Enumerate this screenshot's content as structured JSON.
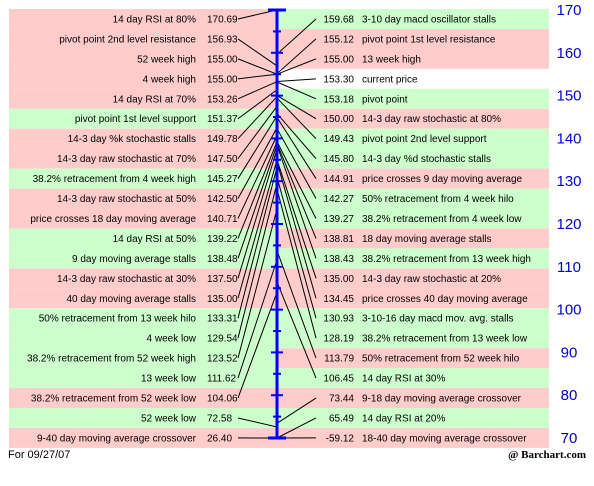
{
  "chart_data": {
    "type": "table",
    "title": "",
    "axis": {
      "ticks": [
        170,
        160,
        150,
        140,
        130,
        120,
        110,
        100,
        90,
        80,
        70
      ],
      "range": [
        70,
        170
      ]
    },
    "colors": {
      "green": "#ccffcc",
      "red": "#ffcccc",
      "current": "#ffffff",
      "axis": "#0000ff",
      "tick_labels": "#0000cc"
    },
    "left": [
      {
        "label": "14 day RSI at 80%",
        "value": "170.69",
        "color": "red"
      },
      {
        "label": "pivot point 2nd level resistance",
        "value": "156.93",
        "color": "red"
      },
      {
        "label": "52 week high",
        "value": "155.00",
        "color": "red"
      },
      {
        "label": "4 week high",
        "value": "155.00",
        "color": "red"
      },
      {
        "label": "14 day RSI at 70%",
        "value": "153.26",
        "color": "red"
      },
      {
        "label": "pivot point 1st level support",
        "value": "151.37",
        "color": "green"
      },
      {
        "label": "14-3 day %k stochastic stalls",
        "value": "149.78",
        "color": "red"
      },
      {
        "label": "14-3 day raw stochastic at 70%",
        "value": "147.50",
        "color": "red"
      },
      {
        "label": "38.2% retracement from 4 week high",
        "value": "145.27",
        "color": "green"
      },
      {
        "label": "14-3 day raw stochastic at 50%",
        "value": "142.50",
        "color": "red"
      },
      {
        "label": "price crosses 18 day moving average",
        "value": "140.71",
        "color": "red"
      },
      {
        "label": "14 day RSI at 50%",
        "value": "139.22",
        "color": "green"
      },
      {
        "label": "9 day moving average stalls",
        "value": "138.48",
        "color": "green"
      },
      {
        "label": "14-3 day raw stochastic at 30%",
        "value": "137.50",
        "color": "red"
      },
      {
        "label": "40 day moving average stalls",
        "value": "135.00",
        "color": "red"
      },
      {
        "label": "50% retracement from 13 week hilo",
        "value": "133.31",
        "color": "green"
      },
      {
        "label": "4 week low",
        "value": "129.54",
        "color": "green"
      },
      {
        "label": "38.2% retracement from 52 week high",
        "value": "123.52",
        "color": "green"
      },
      {
        "label": "13 week low",
        "value": "111.62",
        "color": "green"
      },
      {
        "label": "38.2% retracement from 52 week low",
        "value": "104.06",
        "color": "red"
      },
      {
        "label": "52 week low",
        "value": "72.58",
        "color": "green"
      },
      {
        "label": "9-40 day moving average crossover",
        "value": "26.40",
        "color": "red"
      }
    ],
    "right": [
      {
        "label": "3-10 day macd oscillator stalls",
        "value": "159.68",
        "color": "green"
      },
      {
        "label": "pivot point 1st level resistance",
        "value": "155.12",
        "color": "red"
      },
      {
        "label": "13 week high",
        "value": "155.00",
        "color": "red"
      },
      {
        "label": "current price",
        "value": "153.30",
        "color": "current"
      },
      {
        "label": "pivot point",
        "value": "153.18",
        "color": "green"
      },
      {
        "label": "14-3 day raw stochastic at 80%",
        "value": "150.00",
        "color": "red"
      },
      {
        "label": "pivot point 2nd level support",
        "value": "149.43",
        "color": "green"
      },
      {
        "label": "14-3 day %d stochastic stalls",
        "value": "145.80",
        "color": "green"
      },
      {
        "label": "price crosses 9 day moving average",
        "value": "144.91",
        "color": "red"
      },
      {
        "label": "50% retracement from 4 week hilo",
        "value": "142.27",
        "color": "green"
      },
      {
        "label": "38.2% retracement from 4 week low",
        "value": "139.27",
        "color": "green"
      },
      {
        "label": "18 day moving average stalls",
        "value": "138.81",
        "color": "red"
      },
      {
        "label": "38.2% retracement from 13 week high",
        "value": "138.43",
        "color": "green"
      },
      {
        "label": "14-3 day raw stochastic at 20%",
        "value": "135.00",
        "color": "red"
      },
      {
        "label": "price crosses 40 day moving average",
        "value": "134.45",
        "color": "red"
      },
      {
        "label": "3-10-16 day macd mov. avg. stalls",
        "value": "130.93",
        "color": "green"
      },
      {
        "label": "38.2% retracement from 13 week low",
        "value": "128.19",
        "color": "green"
      },
      {
        "label": "50% retracement from 52 week hilo",
        "value": "113.79",
        "color": "red"
      },
      {
        "label": "14 day RSI at 30%",
        "value": "106.45",
        "color": "green"
      },
      {
        "label": "9-18 day moving average crossover",
        "value": "73.44",
        "color": "red"
      },
      {
        "label": "14 day RSI at 20%",
        "value": "65.49",
        "color": "green"
      },
      {
        "label": "18-40 day moving average crossover",
        "value": "-59.12",
        "color": "red"
      }
    ]
  },
  "footer": {
    "date": "For 09/27/07",
    "credit": "@ Barchart.com"
  }
}
